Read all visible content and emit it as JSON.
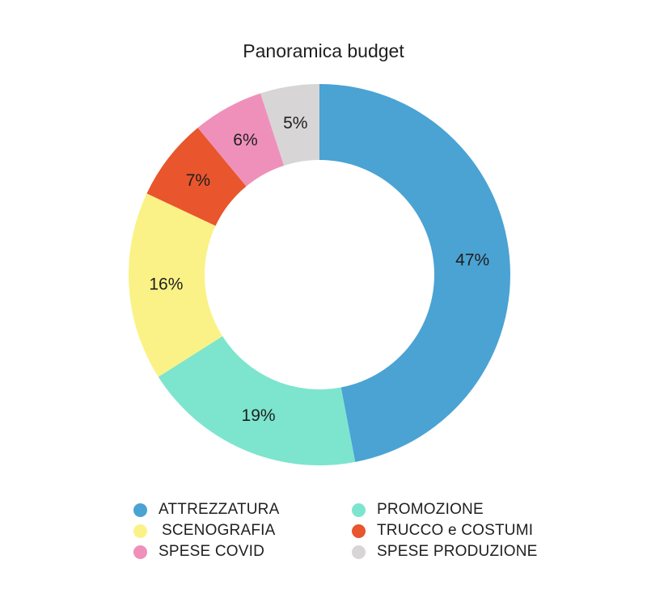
{
  "chart_data": {
    "type": "pie",
    "variant": "donut",
    "title": "Panoramica budget",
    "categories": [
      "ATTREZZATURA",
      "PROMOZIONE",
      "SCENOGRAFIA",
      "TRUCCO e COSTUMI",
      "SPESE COVID",
      "SPESE PRODUZIONE"
    ],
    "values": [
      47,
      19,
      16,
      7,
      6,
      5
    ],
    "labels": [
      "47%",
      "19%",
      "16%",
      "7%",
      "6%",
      "5%"
    ],
    "colors": [
      "#4aa3d3",
      "#7de5cd",
      "#fbf287",
      "#e9552d",
      "#ef90bb",
      "#d7d5d6"
    ],
    "legend_placement": "bottom"
  }
}
